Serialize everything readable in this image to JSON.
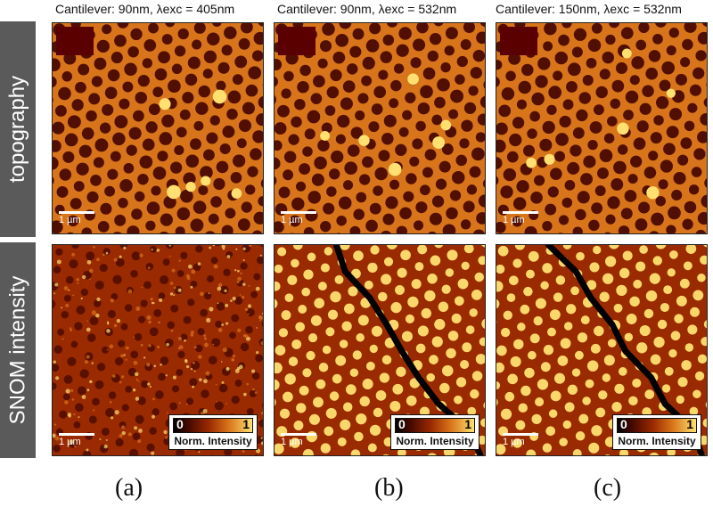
{
  "columns": [
    {
      "title": "Cantilever: 90nm, λexc = 405nm",
      "label": "(a)"
    },
    {
      "title": "Cantilever: 90nm, λexc = 532nm",
      "label": "(b)"
    },
    {
      "title": "Cantilever: 150nm, λexc = 532nm",
      "label": "(c)"
    }
  ],
  "rows": [
    {
      "label": "topography"
    },
    {
      "label": "SNOM intensity"
    }
  ],
  "scalebar_label": "1 µm",
  "legend": {
    "min": "0",
    "max": "1",
    "caption": "Norm. Intensity"
  },
  "colormap": [
    "#000000",
    "#4a0a00",
    "#9a2a00",
    "#d8741a",
    "#ffe070"
  ]
}
